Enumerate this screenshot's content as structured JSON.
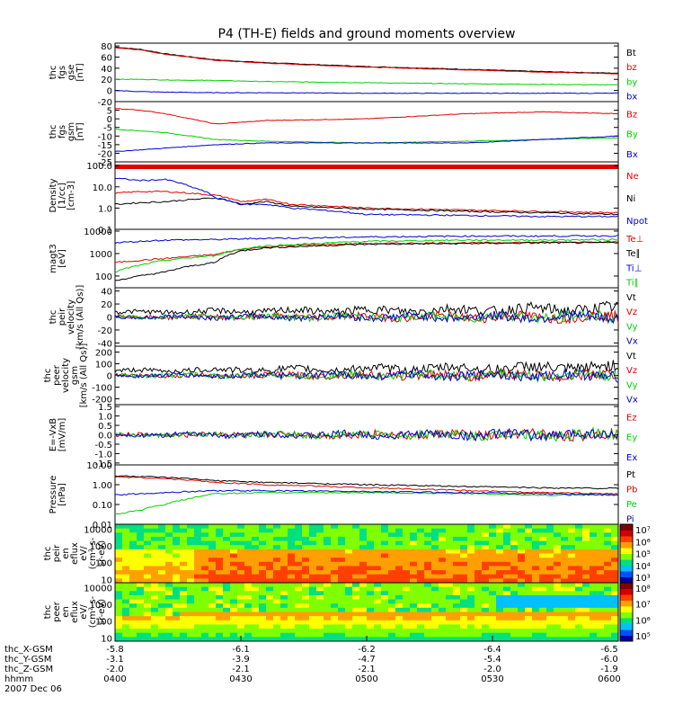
{
  "title": "P4 (TH-E) fields and ground moments overview",
  "colors": {
    "black": "#000000",
    "red": "#e00000",
    "green": "#00d000",
    "blue": "#0000d0"
  },
  "chart_data": [
    {
      "type": "line",
      "panel": "fgs-gse",
      "ylabel": [
        "thc",
        "fgs",
        "gse",
        "[nT]"
      ],
      "ylim": [
        -20,
        85
      ],
      "yticks": [
        "80",
        "60",
        "40",
        "20",
        "0",
        "-20"
      ],
      "tickvals": [
        80,
        60,
        40,
        20,
        0,
        -20
      ],
      "x": [
        0,
        0.05,
        0.1,
        0.2,
        0.3,
        0.5,
        0.7,
        0.85,
        1.0
      ],
      "series": [
        {
          "name": "Bt",
          "color": "black",
          "values": [
            78,
            74,
            66,
            55,
            50,
            43,
            38,
            34,
            31
          ]
        },
        {
          "name": "bz",
          "color": "red",
          "values": [
            77,
            73,
            65,
            54,
            49,
            42,
            37,
            33,
            30
          ]
        },
        {
          "name": "by",
          "color": "green",
          "values": [
            20,
            20,
            19,
            18,
            16,
            14,
            12,
            11,
            10
          ]
        },
        {
          "name": "bx",
          "color": "blue",
          "values": [
            0,
            -2,
            -3,
            -4,
            -4,
            -5,
            -5,
            -5,
            -5
          ]
        }
      ]
    },
    {
      "type": "line",
      "panel": "fgs-gsm",
      "ylabel": [
        "thc",
        "fgs",
        "gsm",
        "[nT]"
      ],
      "ylim": [
        -25,
        10
      ],
      "yticks": [
        "5",
        "0",
        "-5",
        "-10",
        "-15",
        "-20",
        "-25"
      ],
      "tickvals": [
        5,
        0,
        -5,
        -10,
        -15,
        -20,
        -25
      ],
      "x": [
        0,
        0.05,
        0.1,
        0.2,
        0.3,
        0.5,
        0.7,
        0.85,
        1.0
      ],
      "series": [
        {
          "name": "Bz",
          "color": "red",
          "values": [
            6,
            5,
            3,
            -3,
            -1,
            0,
            3,
            4,
            3
          ]
        },
        {
          "name": "By",
          "color": "green",
          "values": [
            -6,
            -7,
            -8,
            -12,
            -13,
            -14,
            -13,
            -12,
            -11
          ]
        },
        {
          "name": "Bx",
          "color": "blue",
          "values": [
            -19,
            -18,
            -17,
            -15,
            -14,
            -14,
            -14,
            -12,
            -10
          ]
        }
      ]
    },
    {
      "type": "line",
      "panel": "density",
      "ylabel": [
        "Density",
        "[1/cc]",
        "[cm-3]"
      ],
      "ylim": [
        0.1,
        150
      ],
      "log": true,
      "yticks": [
        "100.0",
        "10.0",
        "1.0",
        "0.1"
      ],
      "tickvals": [
        100,
        10,
        1,
        0.1
      ],
      "x": [
        0,
        0.05,
        0.1,
        0.15,
        0.2,
        0.25,
        0.3,
        0.35,
        0.5,
        0.7,
        0.85,
        1.0
      ],
      "series": [
        {
          "name": "Ne",
          "color": "red",
          "values": [
            5,
            6,
            6,
            5,
            4,
            2,
            2.5,
            1.5,
            1.0,
            0.8,
            0.7,
            0.6
          ]
        },
        {
          "name": "Ni",
          "color": "black",
          "values": [
            1.5,
            1.8,
            2,
            2.5,
            3,
            1.5,
            2,
            1.2,
            0.9,
            0.7,
            0.6,
            0.5
          ]
        },
        {
          "name": "Npot",
          "color": "blue",
          "values": [
            25,
            20,
            22,
            10,
            3,
            1.5,
            1.5,
            1,
            0.5,
            0.45,
            0.4,
            0.4
          ]
        }
      ]
    },
    {
      "type": "line",
      "panel": "magt3",
      "ylabel": [
        "magt3",
        "[eV]"
      ],
      "ylim": [
        30,
        12000
      ],
      "log": true,
      "yticks": [
        "10000",
        "1000",
        "100"
      ],
      "tickvals": [
        10000,
        1000,
        100
      ],
      "x": [
        0,
        0.05,
        0.1,
        0.2,
        0.25,
        0.3,
        0.4,
        0.5,
        0.7,
        0.85,
        1.0
      ],
      "series": [
        {
          "name": "Te⊥",
          "color": "red",
          "values": [
            400,
            500,
            600,
            900,
            1500,
            2000,
            2500,
            2800,
            3000,
            3200,
            3300
          ]
        },
        {
          "name": "Te∥",
          "color": "black",
          "values": [
            60,
            100,
            150,
            400,
            1300,
            1800,
            2200,
            2600,
            2800,
            3000,
            3100
          ]
        },
        {
          "name": "Ti⊥",
          "color": "blue",
          "values": [
            3000,
            3500,
            4000,
            4200,
            4500,
            4800,
            5000,
            5500,
            6000,
            6000,
            6200
          ]
        },
        {
          "name": "Ti∥",
          "color": "green",
          "values": [
            150,
            300,
            500,
            800,
            1600,
            2200,
            2800,
            3500,
            4000,
            4000,
            4200
          ]
        }
      ]
    },
    {
      "type": "line",
      "panel": "peir-velocity",
      "ylabel": [
        "thc",
        "peir",
        "velocity",
        "[km/s (All Qs)]"
      ],
      "ylim": [
        -45,
        45
      ],
      "yticks": [
        "40",
        "20",
        "0",
        "-20",
        "-40"
      ],
      "tickvals": [
        40,
        20,
        0,
        -20,
        -40
      ],
      "series": [
        {
          "name": "Vt",
          "color": "black",
          "values": []
        },
        {
          "name": "Vz",
          "color": "red",
          "values": []
        },
        {
          "name": "Vy",
          "color": "green",
          "values": []
        },
        {
          "name": "Vx",
          "color": "blue",
          "values": []
        }
      ]
    },
    {
      "type": "line",
      "panel": "peer-velocity",
      "ylabel": [
        "thc",
        "peer",
        "velocity",
        "gsm",
        "[km/s (All Qs)]"
      ],
      "ylim": [
        -250,
        250
      ],
      "yticks": [
        "200",
        "100",
        "0",
        "-100",
        "-200"
      ],
      "tickvals": [
        200,
        100,
        0,
        -100,
        -200
      ],
      "series": [
        {
          "name": "Vt",
          "color": "black",
          "values": []
        },
        {
          "name": "Vz",
          "color": "red",
          "values": []
        },
        {
          "name": "Vy",
          "color": "green",
          "values": []
        },
        {
          "name": "Vx",
          "color": "blue",
          "values": []
        }
      ]
    },
    {
      "type": "line",
      "panel": "efield",
      "ylabel": [
        "E=-VxB",
        "[mV/m]"
      ],
      "ylim": [
        -1.6,
        1.6
      ],
      "yticks": [
        "1.5",
        "1.0",
        "0.5",
        "0.0",
        "-0.5",
        "-1.0",
        "-1.5"
      ],
      "tickvals": [
        1.5,
        1,
        0.5,
        0,
        -0.5,
        -1,
        -1.5
      ],
      "series": [
        {
          "name": "Ez",
          "color": "red",
          "values": []
        },
        {
          "name": "Ey",
          "color": "green",
          "values": []
        },
        {
          "name": "Ex",
          "color": "blue",
          "values": []
        }
      ]
    },
    {
      "type": "line",
      "panel": "pressure",
      "ylabel": [
        "Pressure",
        "[nPa]"
      ],
      "ylim": [
        0.01,
        10
      ],
      "log": true,
      "yticks": [
        "10.00",
        "1.00",
        "0.10",
        "0.01"
      ],
      "tickvals": [
        10,
        1,
        0.1,
        0.01
      ],
      "x": [
        0,
        0.05,
        0.1,
        0.15,
        0.2,
        0.3,
        0.5,
        0.7,
        0.85,
        1.0
      ],
      "series": [
        {
          "name": "Pt",
          "color": "black",
          "values": [
            2.8,
            2.6,
            2.3,
            2.0,
            1.6,
            1.3,
            1.0,
            0.8,
            0.7,
            0.65
          ]
        },
        {
          "name": "Pb",
          "color": "red",
          "values": [
            2.5,
            2.3,
            2.0,
            1.7,
            1.3,
            1.0,
            0.7,
            0.5,
            0.4,
            0.35
          ]
        },
        {
          "name": "Pe",
          "color": "green",
          "values": [
            0.03,
            0.05,
            0.1,
            0.2,
            0.35,
            0.4,
            0.4,
            0.35,
            0.3,
            0.3
          ]
        },
        {
          "name": "Pi",
          "color": "blue",
          "values": [
            0.3,
            0.35,
            0.4,
            0.45,
            0.5,
            0.5,
            0.45,
            0.4,
            0.35,
            0.3
          ]
        }
      ]
    },
    {
      "type": "heatmap",
      "panel": "peir-eflux",
      "ylabel": [
        "thc",
        "peir",
        "en",
        "eflux",
        "eV/",
        "(cm²-s-",
        "sr-eV)"
      ],
      "yticks": [
        "10000",
        "1000",
        "100",
        "10"
      ],
      "colorbar_ticks": [
        "10⁷",
        "10⁶",
        "10⁵",
        "10⁴",
        "10³"
      ]
    },
    {
      "type": "heatmap",
      "panel": "peer-eflux",
      "ylabel": [
        "thc",
        "peer",
        "en",
        "eflux",
        "eV/",
        "(cm²-s-",
        "sr-eV)"
      ],
      "yticks": [
        "10000",
        "1000",
        "100",
        "10"
      ],
      "colorbar_ticks": [
        "10⁸",
        "10⁷",
        "10⁶",
        "10⁵"
      ]
    }
  ],
  "xaxis": {
    "rows": [
      {
        "label": "thc_X-GSM",
        "values": [
          "-5.8",
          "-6.1",
          "-6.2",
          "-6.4",
          "-6.5"
        ]
      },
      {
        "label": "thc_Y-GSM",
        "values": [
          "-3.1",
          "-3.9",
          "-4.7",
          "-5.4",
          "-6.0"
        ]
      },
      {
        "label": "thc_Z-GSM",
        "values": [
          "-2.0",
          "-2.1",
          "-2.1",
          "-2.0",
          "-1.9"
        ]
      },
      {
        "label": "hhmm",
        "values": [
          "0400",
          "0430",
          "0500",
          "0530",
          "0600"
        ]
      }
    ],
    "date": "2007 Dec 06"
  }
}
